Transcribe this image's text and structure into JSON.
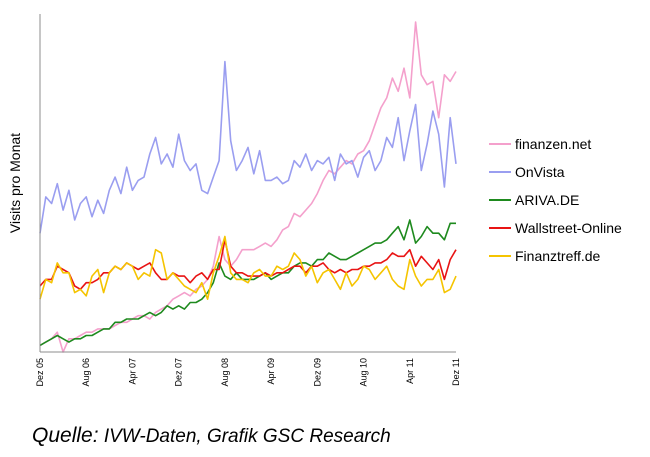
{
  "chart_data": {
    "type": "line",
    "title": "",
    "xlabel": "",
    "ylabel": "Visits pro Monat",
    "grid": false,
    "legend_position": "right",
    "x_ticks": [
      "Dez 05",
      "Aug 06",
      "Apr 07",
      "Dez 07",
      "Aug 08",
      "Apr 09",
      "Dez 09",
      "Aug 10",
      "Apr 11",
      "Dez 11"
    ],
    "y_range": [
      0,
      100
    ],
    "x": [
      0,
      1,
      2,
      3,
      4,
      5,
      6,
      7,
      8,
      9,
      10,
      11,
      12,
      13,
      14,
      15,
      16,
      17,
      18,
      19,
      20,
      21,
      22,
      23,
      24,
      25,
      26,
      27,
      28,
      29,
      30,
      31,
      32,
      33,
      34,
      35,
      36,
      37,
      38,
      39,
      40,
      41,
      42,
      43,
      44,
      45,
      46,
      47,
      48,
      49,
      50,
      51,
      52,
      53,
      54,
      55,
      56,
      57,
      58,
      59,
      60,
      61,
      62,
      63,
      64,
      65,
      66,
      67,
      68,
      69,
      70,
      71,
      72
    ],
    "series": [
      {
        "name": "finanzen.net",
        "color": "#f4a0cc",
        "values": [
          2,
          3,
          4,
          6,
          0,
          4,
          4,
          5,
          6,
          6,
          7,
          7,
          7,
          8,
          9,
          9,
          10,
          11,
          11,
          10,
          12,
          13,
          14,
          16,
          17,
          18,
          17,
          19,
          20,
          22,
          26,
          35,
          28,
          26,
          28,
          31,
          31,
          31,
          32,
          33,
          32,
          34,
          37,
          38,
          42,
          41,
          43,
          45,
          48,
          52,
          55,
          54,
          56,
          58,
          57,
          60,
          61,
          64,
          69,
          74,
          77,
          83,
          79,
          86,
          77,
          100,
          84,
          81,
          82,
          71,
          84,
          82,
          85
        ]
      },
      {
        "name": "OnVista",
        "color": "#9a9ef0",
        "values": [
          36,
          47,
          45,
          51,
          43,
          49,
          40,
          45,
          47,
          41,
          46,
          42,
          49,
          53,
          48,
          56,
          49,
          52,
          53,
          60,
          65,
          57,
          60,
          56,
          66,
          58,
          55,
          57,
          49,
          48,
          53,
          58,
          88,
          64,
          55,
          58,
          62,
          54,
          61,
          52,
          52,
          53,
          51,
          52,
          58,
          56,
          60,
          55,
          58,
          57,
          59,
          52,
          60,
          57,
          58,
          53,
          59,
          61,
          55,
          58,
          65,
          62,
          71,
          58,
          67,
          75,
          55,
          63,
          73,
          66,
          50,
          71,
          57
        ]
      },
      {
        "name": "ARIVA.DE",
        "color": "#1e8a1e",
        "values": [
          2,
          3,
          4,
          5,
          4,
          3,
          4,
          4,
          5,
          5,
          6,
          7,
          7,
          9,
          9,
          10,
          10,
          10,
          11,
          12,
          11,
          12,
          14,
          13,
          14,
          13,
          15,
          15,
          16,
          18,
          21,
          27,
          23,
          22,
          24,
          22,
          22,
          22,
          23,
          24,
          22,
          23,
          24,
          24,
          26,
          27,
          27,
          26,
          28,
          28,
          30,
          29,
          28,
          28,
          29,
          30,
          31,
          32,
          33,
          33,
          34,
          36,
          38,
          34,
          40,
          33,
          35,
          38,
          36,
          36,
          34,
          39,
          39
        ]
      },
      {
        "name": "Wallstreet-Online",
        "color": "#e81414",
        "values": [
          20,
          22,
          22,
          26,
          25,
          24,
          20,
          19,
          21,
          21,
          22,
          24,
          24,
          26,
          25,
          27,
          26,
          25,
          26,
          27,
          24,
          22,
          22,
          24,
          23,
          23,
          21,
          23,
          24,
          22,
          25,
          25,
          34,
          26,
          24,
          24,
          23,
          23,
          23,
          24,
          23,
          24,
          24,
          25,
          26,
          26,
          24,
          26,
          26,
          27,
          25,
          24,
          25,
          24,
          25,
          25,
          26,
          26,
          27,
          27,
          28,
          30,
          29,
          29,
          31,
          26,
          29,
          27,
          25,
          28,
          22,
          28,
          31
        ]
      },
      {
        "name": "Finanztreff.de",
        "color": "#f5c400",
        "values": [
          16,
          22,
          21,
          27,
          24,
          24,
          18,
          19,
          17,
          23,
          25,
          18,
          24,
          26,
          25,
          27,
          26,
          22,
          24,
          23,
          31,
          30,
          22,
          24,
          22,
          20,
          19,
          18,
          21,
          16,
          24,
          29,
          35,
          24,
          22,
          22,
          21,
          24,
          25,
          23,
          23,
          26,
          25,
          26,
          30,
          28,
          23,
          26,
          21,
          24,
          25,
          22,
          19,
          24,
          20,
          22,
          26,
          25,
          22,
          24,
          26,
          22,
          20,
          19,
          28,
          23,
          20,
          22,
          22,
          25,
          18,
          19,
          23
        ]
      }
    ]
  },
  "source": {
    "prefix": "Quelle:",
    "text": " IVW-Daten, Grafik GSC Research"
  }
}
